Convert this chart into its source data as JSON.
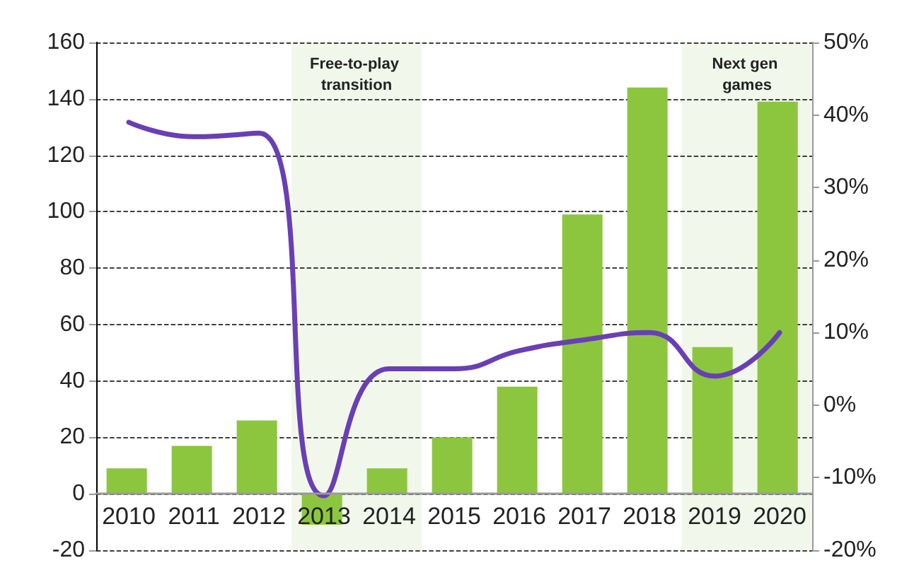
{
  "chart_data": {
    "type": "bar",
    "categories": [
      "2010",
      "2011",
      "2012",
      "2013",
      "2014",
      "2015",
      "2016",
      "2017",
      "2018",
      "2019",
      "2020"
    ],
    "series": [
      {
        "color": "#8cc63f",
        "values": [
          9,
          17,
          26,
          -11,
          9,
          20,
          38,
          99,
          144,
          52,
          139
        ]
      },
      {
        "type": "line",
        "axis": "y2",
        "color": "#6a3fb5",
        "values": [
          39,
          37,
          37.5,
          -12.5,
          5,
          5,
          7.5,
          9,
          10,
          4,
          10
        ]
      }
    ],
    "ylim": [
      -20,
      160
    ],
    "yticks": [
      -20,
      0,
      20,
      40,
      60,
      80,
      100,
      120,
      140,
      160
    ],
    "y2lim": [
      -20,
      50
    ],
    "y2ticks": [
      {
        "value": -20,
        "label": "-20%"
      },
      {
        "value": -10,
        "label": "-10%"
      },
      {
        "value": 0,
        "label": "0%"
      },
      {
        "value": 10,
        "label": "10%"
      },
      {
        "value": 20,
        "label": "20%"
      },
      {
        "value": 30,
        "label": "30%"
      },
      {
        "value": 40,
        "label": "40%"
      },
      {
        "value": 50,
        "label": "50%"
      }
    ],
    "bands": [
      {
        "axis": "x",
        "from": "2013",
        "to": "2014",
        "label": "Free-to-play transition",
        "color": "#f1f8eb"
      },
      {
        "axis": "x",
        "from": "2019",
        "to": "2020",
        "label": "Next gen games",
        "color": "#f1f8eb"
      }
    ],
    "grid": "y",
    "marker": "none",
    "line_style": "solid"
  }
}
